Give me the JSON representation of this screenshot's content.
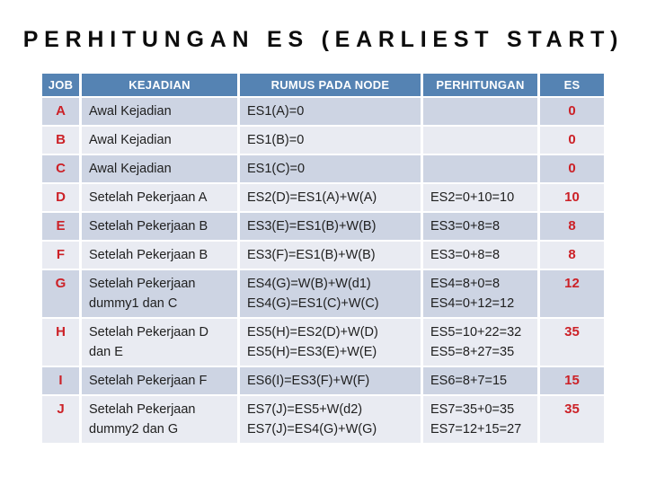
{
  "title": "PERHITUNGAN ES (EARLIEST START)",
  "colors": {
    "header_bg": "#5583b3",
    "band_dark": "#cdd4e3",
    "band_light": "#e9ebf2",
    "accent_red": "#cc2127",
    "body_text": "#202020",
    "header_text": "#ffffff"
  },
  "table": {
    "columns": [
      "JOB",
      "KEJADIAN",
      "RUMUS PADA NODE",
      "PERHITUNGAN",
      "ES"
    ],
    "rows": [
      {
        "job": "A",
        "kejadian": [
          "Awal Kejadian"
        ],
        "rumus": [
          "ES1(A)=0"
        ],
        "perhitungan": [],
        "es": "0"
      },
      {
        "job": "B",
        "kejadian": [
          "Awal Kejadian"
        ],
        "rumus": [
          "ES1(B)=0"
        ],
        "perhitungan": [],
        "es": "0"
      },
      {
        "job": "C",
        "kejadian": [
          "Awal Kejadian"
        ],
        "rumus": [
          "ES1(C)=0"
        ],
        "perhitungan": [],
        "es": "0"
      },
      {
        "job": "D",
        "kejadian": [
          "Setelah Pekerjaan A"
        ],
        "rumus": [
          "ES2(D)=ES1(A)+W(A)"
        ],
        "perhitungan": [
          "ES2=0+10=10"
        ],
        "es": "10"
      },
      {
        "job": "E",
        "kejadian": [
          "Setelah Pekerjaan B"
        ],
        "rumus": [
          "ES3(E)=ES1(B)+W(B)"
        ],
        "perhitungan": [
          "ES3=0+8=8"
        ],
        "es": "8"
      },
      {
        "job": "F",
        "kejadian": [
          "Setelah Pekerjaan B"
        ],
        "rumus": [
          "ES3(F)=ES1(B)+W(B)"
        ],
        "perhitungan": [
          "ES3=0+8=8"
        ],
        "es": "8"
      },
      {
        "job": "G",
        "kejadian": [
          "Setelah Pekerjaan",
          "dummy1 dan C"
        ],
        "rumus": [
          "ES4(G)=W(B)+W(d1)",
          "ES4(G)=ES1(C)+W(C)"
        ],
        "perhitungan": [
          "ES4=8+0=8",
          "ES4=0+12=12"
        ],
        "es": "12"
      },
      {
        "job": "H",
        "kejadian": [
          "Setelah Pekerjaan D",
          "dan E"
        ],
        "rumus": [
          "ES5(H)=ES2(D)+W(D)",
          "ES5(H)=ES3(E)+W(E)"
        ],
        "perhitungan": [
          "ES5=10+22=32",
          "ES5=8+27=35"
        ],
        "es": "35"
      },
      {
        "job": "I",
        "kejadian": [
          "Setelah Pekerjaan F"
        ],
        "rumus": [
          "ES6(I)=ES3(F)+W(F)"
        ],
        "perhitungan": [
          "ES6=8+7=15"
        ],
        "es": "15"
      },
      {
        "job": "J",
        "kejadian": [
          "Setelah Pekerjaan",
          "dummy2 dan G"
        ],
        "rumus": [
          "ES7(J)=ES5+W(d2)",
          "ES7(J)=ES4(G)+W(G)"
        ],
        "perhitungan": [
          "ES7=35+0=35",
          "ES7=12+15=27"
        ],
        "es": "35"
      }
    ]
  }
}
